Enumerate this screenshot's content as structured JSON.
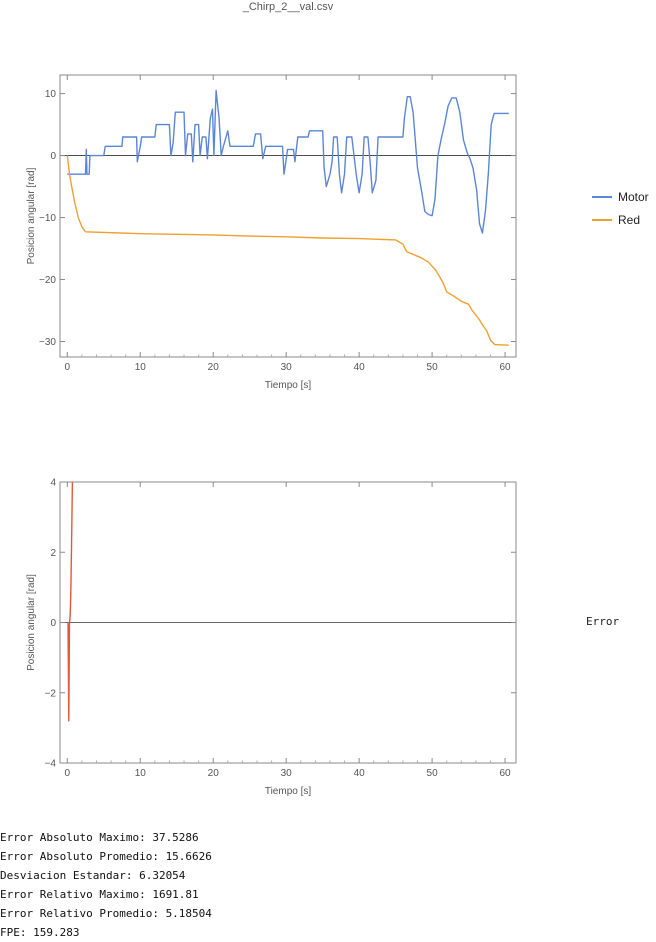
{
  "page": {
    "title": "_Chirp_2__val.csv"
  },
  "chart_data": [
    {
      "type": "line",
      "xlabel": "Tiempo [s]",
      "ylabel": "Posicion angular [rad]",
      "xlim": [
        -1,
        61.5
      ],
      "ylim": [
        -32.5,
        13
      ],
      "xticks": [
        0,
        10,
        20,
        30,
        40,
        50,
        60
      ],
      "yticks": [
        10,
        0,
        -10,
        -20,
        -30
      ],
      "legend_position": "right",
      "series": [
        {
          "name": "Motor",
          "color": "#5b86d6",
          "points": [
            [
              0,
              -3
            ],
            [
              2.5,
              -3
            ],
            [
              2.6,
              1
            ],
            [
              2.7,
              -3
            ],
            [
              3,
              -3
            ],
            [
              3.1,
              0
            ],
            [
              5,
              0
            ],
            [
              5.2,
              1.5
            ],
            [
              7.5,
              1.5
            ],
            [
              7.6,
              3
            ],
            [
              9.5,
              3
            ],
            [
              9.6,
              -1
            ],
            [
              10,
              1.5
            ],
            [
              10.2,
              3
            ],
            [
              12,
              3
            ],
            [
              12.2,
              5
            ],
            [
              14,
              5
            ],
            [
              14.2,
              0
            ],
            [
              14.5,
              2
            ],
            [
              14.8,
              7
            ],
            [
              16,
              7
            ],
            [
              16.2,
              0
            ],
            [
              16.5,
              3.5
            ],
            [
              17,
              3.5
            ],
            [
              17.2,
              -1
            ],
            [
              17.5,
              5
            ],
            [
              18,
              5
            ],
            [
              18.2,
              0
            ],
            [
              18.5,
              3
            ],
            [
              19,
              3
            ],
            [
              19.2,
              -0.5
            ],
            [
              19.6,
              6
            ],
            [
              19.9,
              7.5
            ],
            [
              20.1,
              0
            ],
            [
              20.4,
              10.5
            ],
            [
              20.8,
              6
            ],
            [
              21.1,
              0
            ],
            [
              21.4,
              1.5
            ],
            [
              22,
              4
            ],
            [
              22.3,
              1.5
            ],
            [
              25.5,
              1.5
            ],
            [
              25.8,
              3.5
            ],
            [
              26.5,
              3.5
            ],
            [
              26.8,
              -0.5
            ],
            [
              27.2,
              1.5
            ],
            [
              29.5,
              1.5
            ],
            [
              29.7,
              -3
            ],
            [
              30.2,
              1
            ],
            [
              31,
              1
            ],
            [
              31.2,
              -1
            ],
            [
              31.6,
              3
            ],
            [
              33,
              3
            ],
            [
              33.2,
              4
            ],
            [
              35,
              4
            ],
            [
              35.2,
              -2
            ],
            [
              35.5,
              -5
            ],
            [
              36,
              -3
            ],
            [
              36.3,
              -1
            ],
            [
              36.5,
              3
            ],
            [
              37,
              3
            ],
            [
              37.3,
              -3
            ],
            [
              37.6,
              -6
            ],
            [
              38,
              -3
            ],
            [
              38.3,
              3
            ],
            [
              39,
              3
            ],
            [
              39.3,
              0
            ],
            [
              39.6,
              -3
            ],
            [
              40,
              -6
            ],
            [
              40.4,
              -3
            ],
            [
              40.7,
              3
            ],
            [
              41.2,
              3
            ],
            [
              41.5,
              -1
            ],
            [
              41.8,
              -6
            ],
            [
              42.3,
              -4
            ],
            [
              42.6,
              3
            ],
            [
              46,
              3
            ],
            [
              46.2,
              6
            ],
            [
              46.6,
              9.5
            ],
            [
              47,
              9.5
            ],
            [
              47.4,
              7
            ],
            [
              48,
              -2
            ],
            [
              48.6,
              -6
            ],
            [
              49,
              -9
            ],
            [
              49.5,
              -9.5
            ],
            [
              50,
              -9.7
            ],
            [
              50.4,
              -7
            ],
            [
              50.8,
              0
            ],
            [
              51.3,
              3
            ],
            [
              51.7,
              5
            ],
            [
              52.2,
              8
            ],
            [
              52.7,
              9.3
            ],
            [
              53.3,
              9.3
            ],
            [
              53.8,
              7
            ],
            [
              54.3,
              2.5
            ],
            [
              54.8,
              0.5
            ],
            [
              55.2,
              -0.5
            ],
            [
              55.6,
              -2
            ],
            [
              56.1,
              -5.5
            ],
            [
              56.5,
              -11
            ],
            [
              56.9,
              -12.5
            ],
            [
              57.3,
              -9
            ],
            [
              57.7,
              -3
            ],
            [
              58.1,
              5
            ],
            [
              58.5,
              6.8
            ],
            [
              60.5,
              6.8
            ]
          ]
        },
        {
          "name": "Red",
          "color": "#f0a030",
          "points": [
            [
              0,
              0
            ],
            [
              0.3,
              -3
            ],
            [
              0.6,
              -5
            ],
            [
              1,
              -7.5
            ],
            [
              1.5,
              -10
            ],
            [
              2,
              -11.5
            ],
            [
              2.5,
              -12.3
            ],
            [
              5,
              -12.4
            ],
            [
              10,
              -12.6
            ],
            [
              15,
              -12.7
            ],
            [
              20,
              -12.8
            ],
            [
              25,
              -13
            ],
            [
              30,
              -13.1
            ],
            [
              35,
              -13.3
            ],
            [
              40,
              -13.4
            ],
            [
              45,
              -13.6
            ],
            [
              46,
              -14.3
            ],
            [
              46.5,
              -15.5
            ],
            [
              47.5,
              -16
            ],
            [
              48.5,
              -16.5
            ],
            [
              49.5,
              -17.2
            ],
            [
              50.5,
              -18.5
            ],
            [
              51,
              -19.5
            ],
            [
              51.5,
              -20.5
            ],
            [
              52,
              -22
            ],
            [
              53,
              -22.7
            ],
            [
              54,
              -23.5
            ],
            [
              55,
              -24
            ],
            [
              55.5,
              -25
            ],
            [
              56.5,
              -26.5
            ],
            [
              57,
              -27.5
            ],
            [
              57.5,
              -28.3
            ],
            [
              58,
              -29.8
            ],
            [
              58.6,
              -30.5
            ],
            [
              60.5,
              -30.6
            ]
          ]
        }
      ]
    },
    {
      "type": "line",
      "xlabel": "Tiempo [s]",
      "ylabel": "Posicion angular [rad]",
      "xlim": [
        -1,
        61.5
      ],
      "ylim": [
        -4,
        4
      ],
      "xticks": [
        0,
        10,
        20,
        30,
        40,
        50,
        60
      ],
      "yticks": [
        4,
        2,
        0,
        -2,
        -4
      ],
      "legend_position": "right",
      "series": [
        {
          "name": "Error",
          "color": "#e05a3a",
          "points": [
            [
              0.1,
              0
            ],
            [
              0.2,
              -2.8
            ],
            [
              0.25,
              -1.5
            ],
            [
              0.3,
              0
            ],
            [
              0.4,
              0.2
            ],
            [
              0.5,
              1
            ],
            [
              0.6,
              2.5
            ],
            [
              0.7,
              4
            ]
          ]
        }
      ]
    }
  ],
  "legend": {
    "motor": "Motor",
    "red": "Red",
    "error": "Error"
  },
  "stats": [
    "Error Absoluto Maximo: 37.5286",
    "Error Absoluto Promedio: 15.6626",
    "Desviacion Estandar: 6.32054",
    "Error Relativo Maximo: 1691.81",
    "Error Relativo Promedio: 5.18504",
    "FPE: 159.283"
  ]
}
